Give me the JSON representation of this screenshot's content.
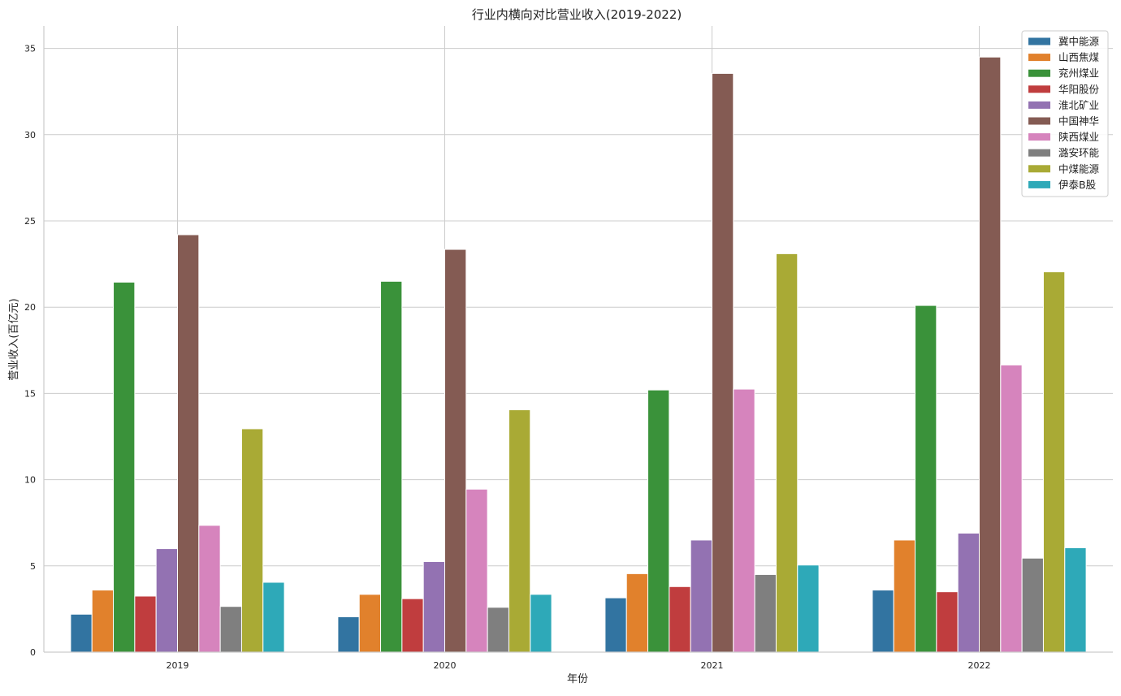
{
  "chart_data": {
    "type": "bar",
    "title": "行业内横向对比营业收入(2019-2022)",
    "xlabel": "年份",
    "ylabel": "营业收入(百亿元)",
    "categories": [
      "2019",
      "2020",
      "2021",
      "2022"
    ],
    "ylim": [
      0,
      36.3
    ],
    "yticks": [
      0,
      5,
      10,
      15,
      20,
      25,
      30,
      35
    ],
    "grid": true,
    "legend_position": "top-right",
    "series": [
      {
        "name": "冀中能源",
        "color": "#3274a1",
        "values": [
          2.2,
          2.05,
          3.15,
          3.6
        ]
      },
      {
        "name": "山西焦煤",
        "color": "#e1812c",
        "values": [
          3.6,
          3.35,
          4.55,
          6.5
        ]
      },
      {
        "name": "兖州煤业",
        "color": "#3a923a",
        "values": [
          21.45,
          21.5,
          15.2,
          20.1
        ]
      },
      {
        "name": "华阳股份",
        "color": "#c03d3e",
        "values": [
          3.25,
          3.1,
          3.8,
          3.5
        ]
      },
      {
        "name": "淮北矿业",
        "color": "#9372b2",
        "values": [
          6.0,
          5.25,
          6.5,
          6.9
        ]
      },
      {
        "name": "中国神华",
        "color": "#845b53",
        "values": [
          24.2,
          23.35,
          33.55,
          34.5
        ]
      },
      {
        "name": "陕西煤业",
        "color": "#d684bd",
        "values": [
          7.35,
          9.45,
          15.25,
          16.65
        ]
      },
      {
        "name": "潞安环能",
        "color": "#7f7f7f",
        "values": [
          2.65,
          2.6,
          4.5,
          5.45
        ]
      },
      {
        "name": "中煤能源",
        "color": "#a9aa35",
        "values": [
          12.95,
          14.05,
          23.1,
          22.05
        ]
      },
      {
        "name": "伊泰B股",
        "color": "#2ea9b8",
        "values": [
          4.05,
          3.35,
          5.05,
          6.05
        ]
      }
    ]
  }
}
